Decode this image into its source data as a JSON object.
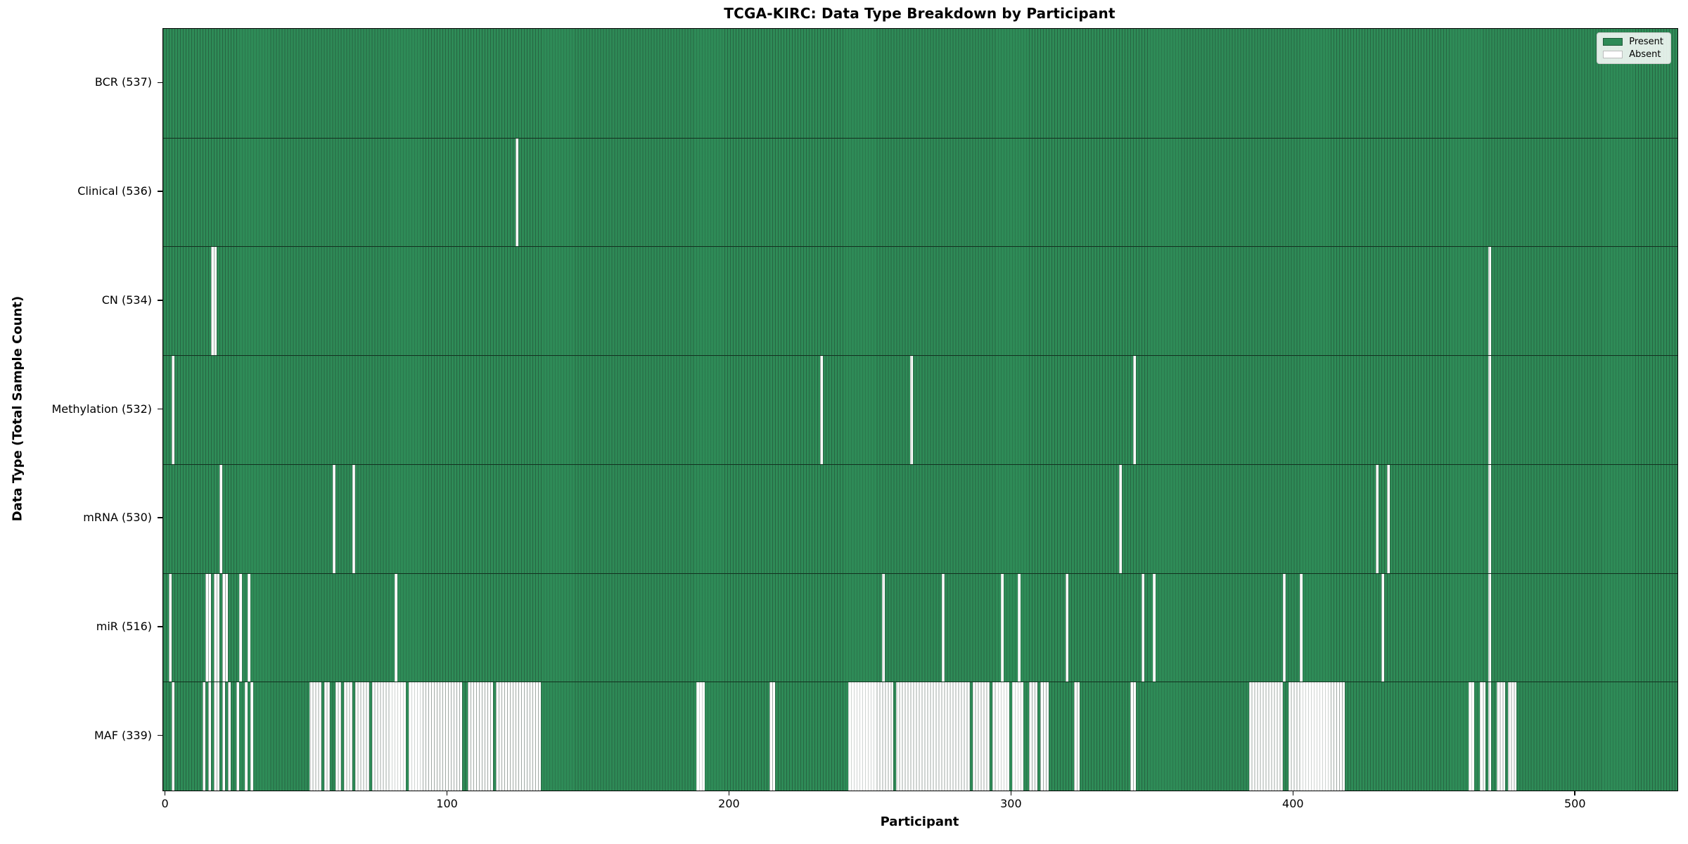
{
  "chart_data": {
    "type": "heatmap",
    "title": "TCGA-KIRC: Data Type Breakdown by Participant",
    "xlabel": "Participant",
    "ylabel": "Data Type (Total Sample Count)",
    "x_ticks": [
      0,
      100,
      200,
      300,
      400,
      500
    ],
    "total_participants": 537,
    "xlim": [
      -0.5,
      536.5
    ],
    "grid": false,
    "legend": {
      "position": "upper right",
      "entries": [
        {
          "label": "Present",
          "color": "#2e8b57"
        },
        {
          "label": "Absent",
          "color": "#ffffff"
        }
      ]
    },
    "colors": {
      "present": "#2e8b57",
      "absent": "#ffffff",
      "bar_edge": "rgba(30,48,38,0.42)",
      "row_separator": "rgba(0,0,0,0.65)"
    },
    "rows": [
      {
        "name": "BCR",
        "label": "BCR (537)",
        "present_count": 537,
        "absent_ranges": []
      },
      {
        "name": "Clinical",
        "label": "Clinical (536)",
        "present_count": 536,
        "absent_ranges": [
          [
            125,
            125
          ]
        ]
      },
      {
        "name": "CN",
        "label": "CN (534)",
        "present_count": 534,
        "absent_ranges": [
          [
            17,
            18
          ],
          [
            470,
            470
          ]
        ]
      },
      {
        "name": "Methylation",
        "label": "Methylation (532)",
        "present_count": 532,
        "absent_ranges": [
          [
            3,
            3
          ],
          [
            233,
            233
          ],
          [
            265,
            265
          ],
          [
            344,
            344
          ],
          [
            470,
            470
          ]
        ]
      },
      {
        "name": "mRNA",
        "label": "mRNA (530)",
        "present_count": 530,
        "absent_ranges": [
          [
            20,
            20
          ],
          [
            60,
            60
          ],
          [
            67,
            67
          ],
          [
            339,
            339
          ],
          [
            430,
            430
          ],
          [
            434,
            434
          ],
          [
            470,
            470
          ]
        ]
      },
      {
        "name": "miR",
        "label": "miR (516)",
        "present_count": 516,
        "absent_ranges": [
          [
            2,
            2
          ],
          [
            15,
            16
          ],
          [
            18,
            19
          ],
          [
            21,
            22
          ],
          [
            27,
            27
          ],
          [
            30,
            30
          ],
          [
            82,
            82
          ],
          [
            255,
            255
          ],
          [
            276,
            276
          ],
          [
            297,
            297
          ],
          [
            303,
            303
          ],
          [
            320,
            320
          ],
          [
            347,
            347
          ],
          [
            351,
            351
          ],
          [
            397,
            397
          ],
          [
            403,
            403
          ],
          [
            432,
            432
          ],
          [
            470,
            470
          ]
        ]
      },
      {
        "name": "MAF",
        "label": "MAF (339)",
        "present_count": 339,
        "absent_ranges": [
          [
            3,
            3
          ],
          [
            14,
            14
          ],
          [
            16,
            16
          ],
          [
            18,
            19
          ],
          [
            21,
            21
          ],
          [
            23,
            23
          ],
          [
            26,
            26
          ],
          [
            29,
            29
          ],
          [
            31,
            31
          ],
          [
            52,
            55
          ],
          [
            57,
            58
          ],
          [
            61,
            62
          ],
          [
            64,
            66
          ],
          [
            68,
            72
          ],
          [
            74,
            85
          ],
          [
            87,
            105
          ],
          [
            108,
            116
          ],
          [
            118,
            133
          ],
          [
            189,
            191
          ],
          [
            215,
            216
          ],
          [
            243,
            258
          ],
          [
            260,
            285
          ],
          [
            287,
            292
          ],
          [
            294,
            299
          ],
          [
            301,
            304
          ],
          [
            307,
            309
          ],
          [
            311,
            313
          ],
          [
            323,
            324
          ],
          [
            343,
            344
          ],
          [
            385,
            396
          ],
          [
            399,
            418
          ],
          [
            463,
            464
          ],
          [
            467,
            468
          ],
          [
            470,
            470
          ],
          [
            473,
            475
          ],
          [
            477,
            479
          ]
        ]
      }
    ]
  }
}
